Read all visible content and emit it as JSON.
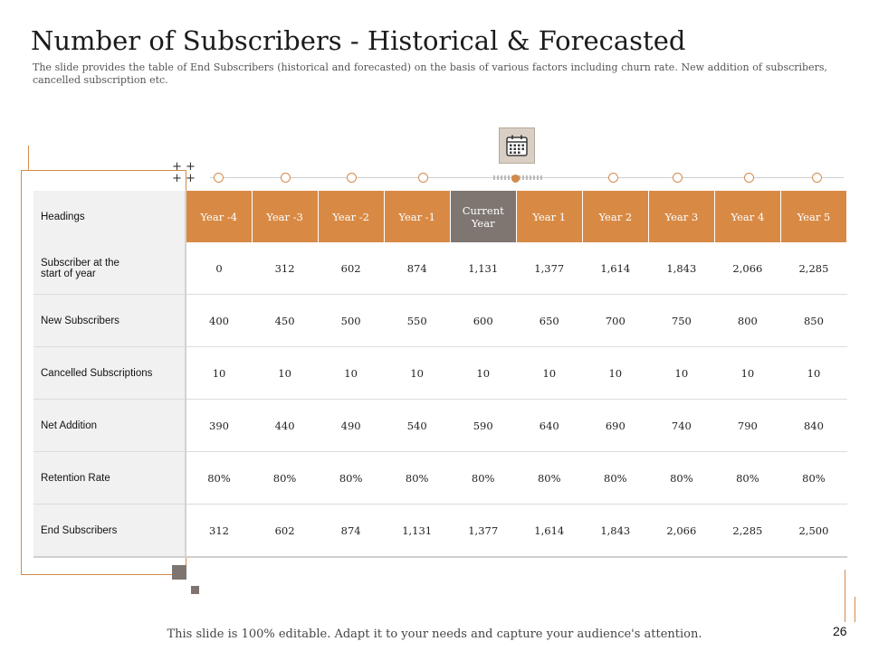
{
  "slide": {
    "title": "Number of Subscribers - Historical & Forecasted",
    "subtitle": "The slide provides the table of End Subscribers (historical and forecasted) on the basis of various factors including churn rate. New addition of subscribers, cancelled subscription etc.",
    "footer": "This slide is 100% editable. Adapt it to your needs and capture your audience's attention.",
    "page_number": "26"
  },
  "icons": {
    "calendar": "calendar-icon",
    "plus": "plus-icon"
  },
  "colors": {
    "accent": "#d88a45",
    "current": "#7f7671",
    "label_bg": "#f1f1f1"
  },
  "table": {
    "headers": [
      "Headings",
      "Year -4",
      "Year -3",
      "Year -2",
      "Year -1",
      "Current Year",
      "Year 1",
      "Year 2",
      "Year 3",
      "Year 4",
      "Year 5"
    ],
    "rows": [
      {
        "label": "Subscriber at the start of year",
        "values": [
          "0",
          "312",
          "602",
          "874",
          "1,131",
          "1,377",
          "1,614",
          "1,843",
          "2,066",
          "2,285"
        ]
      },
      {
        "label": "New Subscribers",
        "values": [
          "400",
          "450",
          "500",
          "550",
          "600",
          "650",
          "700",
          "750",
          "800",
          "850"
        ]
      },
      {
        "label": "Cancelled Subscriptions",
        "values": [
          "10",
          "10",
          "10",
          "10",
          "10",
          "10",
          "10",
          "10",
          "10",
          "10"
        ]
      },
      {
        "label": "Net Addition",
        "values": [
          "390",
          "440",
          "490",
          "540",
          "590",
          "640",
          "690",
          "740",
          "790",
          "840"
        ]
      },
      {
        "label": "Retention Rate",
        "values": [
          "80%",
          "80%",
          "80%",
          "80%",
          "80%",
          "80%",
          "80%",
          "80%",
          "80%",
          "80%"
        ]
      },
      {
        "label": "End Subscribers",
        "values": [
          "312",
          "602",
          "874",
          "1,131",
          "1,377",
          "1,614",
          "1,843",
          "2,066",
          "2,285",
          "2,500"
        ]
      }
    ]
  }
}
